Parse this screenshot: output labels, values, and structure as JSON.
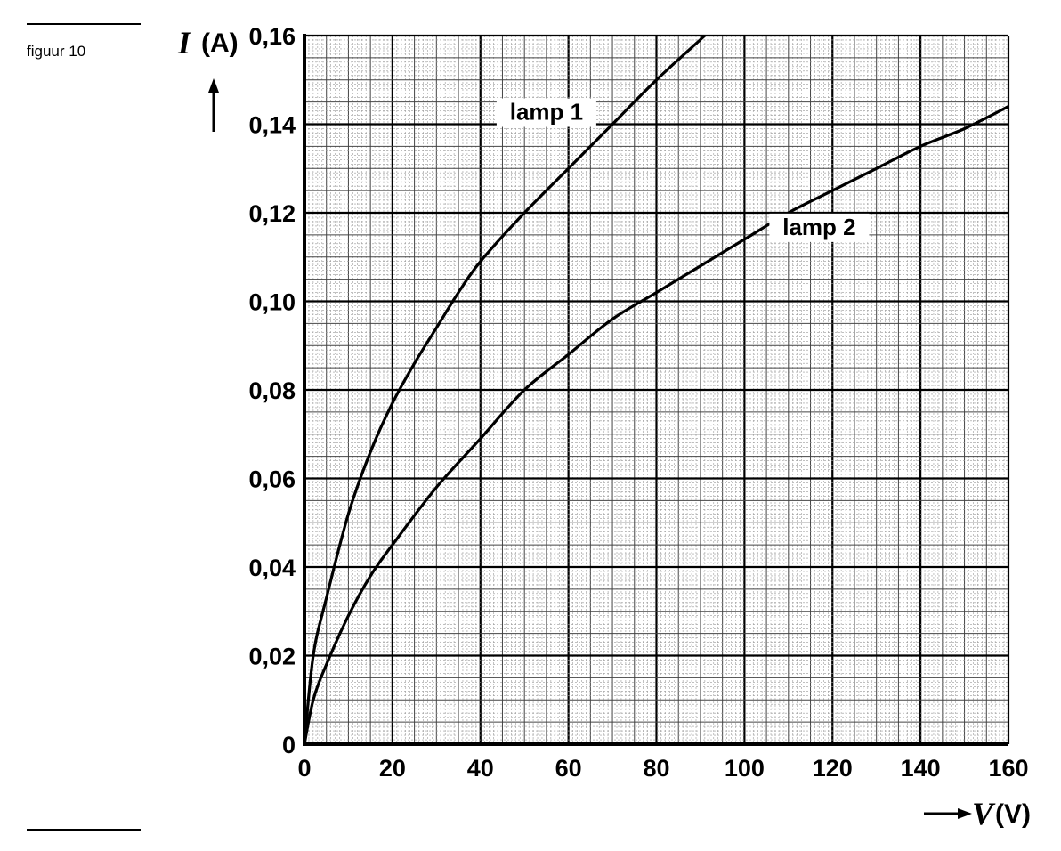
{
  "figure_label": "figuur 10",
  "chart_data": {
    "type": "line",
    "xlabel": {
      "symbol": "V",
      "unit": "(V)"
    },
    "ylabel": {
      "symbol": "I",
      "unit": "(A)"
    },
    "xlim": [
      0,
      160
    ],
    "ylim": [
      0,
      0.16
    ],
    "x_ticks": [
      0,
      20,
      40,
      60,
      80,
      100,
      120,
      140,
      160
    ],
    "y_ticks": [
      0,
      0.02,
      0.04,
      0.06,
      0.08,
      0.1,
      0.12,
      0.14,
      0.16
    ],
    "x_tick_labels": [
      "0",
      "20",
      "40",
      "60",
      "80",
      "100",
      "120",
      "140",
      "160"
    ],
    "y_tick_labels": [
      "0",
      "0,02",
      "0,04",
      "0,06",
      "0,08",
      "0,10",
      "0,12",
      "0,14",
      "0,16"
    ],
    "grid": true,
    "series": [
      {
        "name": "lamp 1",
        "x": [
          0,
          2,
          5,
          10,
          15,
          20,
          25,
          30,
          35,
          40,
          50,
          60,
          70,
          80,
          91
        ],
        "y": [
          0,
          0.02,
          0.033,
          0.052,
          0.066,
          0.077,
          0.086,
          0.094,
          0.102,
          0.109,
          0.12,
          0.13,
          0.14,
          0.15,
          0.16
        ]
      },
      {
        "name": "lamp 2",
        "x": [
          0,
          2,
          5,
          10,
          15,
          20,
          30,
          40,
          50,
          60,
          70,
          80,
          90,
          100,
          110,
          120,
          130,
          140,
          150,
          160
        ],
        "y": [
          0,
          0.01,
          0.018,
          0.029,
          0.038,
          0.045,
          0.058,
          0.069,
          0.08,
          0.088,
          0.096,
          0.102,
          0.108,
          0.114,
          0.12,
          0.125,
          0.13,
          0.135,
          0.139,
          0.144
        ]
      }
    ],
    "annotations": [
      {
        "text": "lamp 1",
        "x": 55,
        "y": 0.141
      },
      {
        "text": "lamp 2",
        "x": 117,
        "y": 0.115
      }
    ]
  }
}
